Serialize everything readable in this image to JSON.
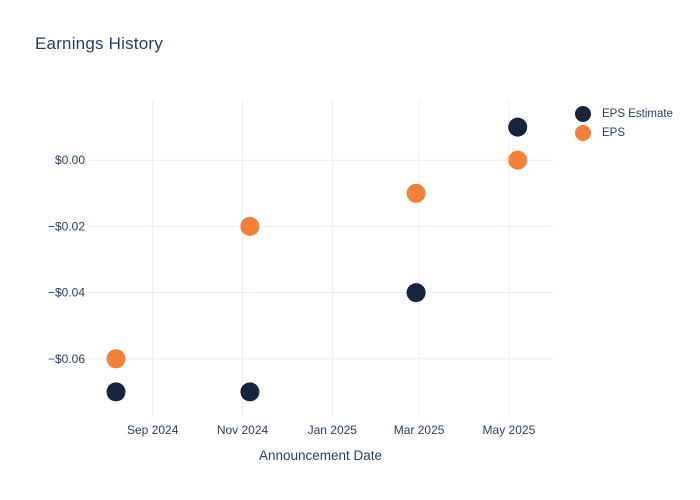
{
  "colors": {
    "background": "#ffffff",
    "grid": "#e9edf4",
    "text": "#2a3f5f",
    "eps_estimate": "#16253c",
    "eps": "#f3813a"
  },
  "chart_data": {
    "type": "scatter",
    "title": "Earnings History",
    "xlabel": "Announcement Date",
    "ylabel": "",
    "grid": true,
    "legend_position": "right",
    "xlim": [
      "2024-07-19",
      "2025-05-31"
    ],
    "ylim": [
      -0.0776,
      0.0182
    ],
    "series": [
      {
        "name": "EPS Estimate",
        "color": "#16253c",
        "points": [
          {
            "x": "2024-08-07",
            "y": -0.07
          },
          {
            "x": "2024-11-06",
            "y": -0.07
          },
          {
            "x": "2025-02-27",
            "y": -0.04
          },
          {
            "x": "2025-05-07",
            "y": 0.01
          }
        ]
      },
      {
        "name": "EPS",
        "color": "#f3813a",
        "points": [
          {
            "x": "2024-08-07",
            "y": -0.06
          },
          {
            "x": "2024-11-06",
            "y": -0.02
          },
          {
            "x": "2025-02-27",
            "y": -0.01
          },
          {
            "x": "2025-05-07",
            "y": 0.0
          }
        ]
      }
    ],
    "x_ticks": [
      {
        "x": "2024-09-01",
        "label": "Sep 2024"
      },
      {
        "x": "2024-11-01",
        "label": "Nov 2024"
      },
      {
        "x": "2025-01-01",
        "label": "Jan 2025"
      },
      {
        "x": "2025-03-01",
        "label": "Mar 2025"
      },
      {
        "x": "2025-05-01",
        "label": "May 2025"
      }
    ],
    "y_ticks": [
      {
        "y": 0,
        "label": "$0.00"
      },
      {
        "y": -0.02,
        "label": "−$0.02"
      },
      {
        "y": -0.04,
        "label": "−$0.04"
      },
      {
        "y": -0.06,
        "label": "−$0.06"
      }
    ]
  }
}
